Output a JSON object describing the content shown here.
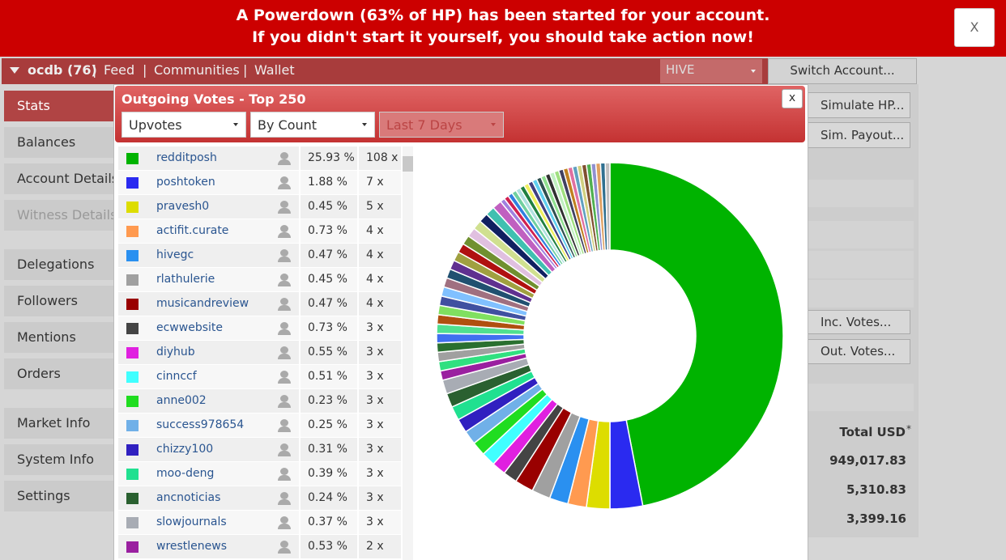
{
  "banner": {
    "line1": "A Powerdown (63% of HP) has been started for your account.",
    "line2": "If you didn't start it yourself, you should take action now!",
    "close": "X"
  },
  "navbar": {
    "account": "ocdb (76)",
    "separator": "|",
    "links": [
      "Feed",
      "Communities",
      "Wallet"
    ],
    "currency": "HIVE",
    "switch": "Switch Account..."
  },
  "sidebar": {
    "items": [
      "Stats",
      "Balances",
      "Account Details",
      "Witness Details",
      "Delegations",
      "Followers",
      "Mentions",
      "Orders",
      "Market Info",
      "System Info",
      "Settings"
    ],
    "active_index": 0,
    "disabled_index": 3
  },
  "right_panel": {
    "buttons": [
      "Simulate HP...",
      "Sim. Payout...",
      "Inc. Votes...",
      "Out. Votes..."
    ],
    "total_header": "Total USD",
    "asterisk": "*",
    "totals": [
      "949,017.83",
      "5,310.83",
      "3,399.16"
    ]
  },
  "modal": {
    "title": "Outgoing Votes - Top 250",
    "close": "x",
    "filters": [
      "Upvotes",
      "By Count",
      "Last 7 Days"
    ],
    "rows": [
      {
        "name": "redditposh",
        "color": "#00b300",
        "percent": "25.93 %",
        "count": 108,
        "count_label": "108 x"
      },
      {
        "name": "poshtoken",
        "color": "#2a2af0",
        "percent": "1.88 %",
        "count": 7,
        "count_label": "7 x"
      },
      {
        "name": "pravesh0",
        "color": "#dddd00",
        "percent": "0.45 %",
        "count": 5,
        "count_label": "5 x"
      },
      {
        "name": "actifit.curate",
        "color": "#ff9a50",
        "percent": "0.73 %",
        "count": 4,
        "count_label": "4 x"
      },
      {
        "name": "hivegc",
        "color": "#2a90f0",
        "percent": "0.47 %",
        "count": 4,
        "count_label": "4 x"
      },
      {
        "name": "rlathulerie",
        "color": "#a0a0a0",
        "percent": "0.45 %",
        "count": 4,
        "count_label": "4 x"
      },
      {
        "name": "musicandreview",
        "color": "#990000",
        "percent": "0.47 %",
        "count": 4,
        "count_label": "4 x"
      },
      {
        "name": "ecwwebsite",
        "color": "#444444",
        "percent": "0.73 %",
        "count": 3,
        "count_label": "3 x"
      },
      {
        "name": "diyhub",
        "color": "#e020e0",
        "percent": "0.55 %",
        "count": 3,
        "count_label": "3 x"
      },
      {
        "name": "cinnccf",
        "color": "#40ffff",
        "percent": "0.51 %",
        "count": 3,
        "count_label": "3 x"
      },
      {
        "name": "anne002",
        "color": "#20dd20",
        "percent": "0.23 %",
        "count": 3,
        "count_label": "3 x"
      },
      {
        "name": "success978654",
        "color": "#70b0e8",
        "percent": "0.25 %",
        "count": 3,
        "count_label": "3 x"
      },
      {
        "name": "chizzy100",
        "color": "#3020c0",
        "percent": "0.31 %",
        "count": 3,
        "count_label": "3 x"
      },
      {
        "name": "moo-deng",
        "color": "#20e090",
        "percent": "0.39 %",
        "count": 3,
        "count_label": "3 x"
      },
      {
        "name": "ancnoticias",
        "color": "#2a6030",
        "percent": "0.24 %",
        "count": 3,
        "count_label": "3 x"
      },
      {
        "name": "slowjournals",
        "color": "#a8acb4",
        "percent": "0.37 %",
        "count": 3,
        "count_label": "3 x"
      },
      {
        "name": "wrestlenews",
        "color": "#9a20a0",
        "percent": "0.53 %",
        "count": 2,
        "count_label": "2 x"
      }
    ],
    "more_slices": [
      {
        "color": "#30e080",
        "count": 2
      },
      {
        "color": "#a0a0a0",
        "count": 2
      },
      {
        "color": "#2a7030",
        "count": 2
      },
      {
        "color": "#4070f0",
        "count": 2
      },
      {
        "color": "#50e090",
        "count": 2
      },
      {
        "color": "#b05010",
        "count": 2
      },
      {
        "color": "#80e060",
        "count": 2
      },
      {
        "color": "#4050a0",
        "count": 2
      },
      {
        "color": "#80c0ff",
        "count": 2
      },
      {
        "color": "#a07080",
        "count": 2
      },
      {
        "color": "#205070",
        "count": 2
      },
      {
        "color": "#603090",
        "count": 2
      },
      {
        "color": "#a0a040",
        "count": 2
      },
      {
        "color": "#b01010",
        "count": 2
      },
      {
        "color": "#709030",
        "count": 2
      },
      {
        "color": "#e0c0e0",
        "count": 2
      },
      {
        "color": "#d0e090",
        "count": 2
      },
      {
        "color": "#102060",
        "count": 2
      },
      {
        "color": "#40c0b0",
        "count": 2
      },
      {
        "color": "#c060c0",
        "count": 2
      },
      {
        "color": "#a080e0",
        "count": 1
      },
      {
        "color": "#d02050",
        "count": 1
      },
      {
        "color": "#3080e0",
        "count": 1
      },
      {
        "color": "#70d0a0",
        "count": 1
      },
      {
        "color": "#b0e0e0",
        "count": 1
      },
      {
        "color": "#208040",
        "count": 1
      },
      {
        "color": "#f0f060",
        "count": 1
      },
      {
        "color": "#404080",
        "count": 1
      },
      {
        "color": "#60d0f0",
        "count": 1
      },
      {
        "color": "#305050",
        "count": 1
      },
      {
        "color": "#90e090",
        "count": 1
      },
      {
        "color": "#303030",
        "count": 1
      },
      {
        "color": "#c0f0c0",
        "count": 1
      },
      {
        "color": "#a0e080",
        "count": 1
      },
      {
        "color": "#404060",
        "count": 1
      },
      {
        "color": "#c08020",
        "count": 1
      },
      {
        "color": "#e070a0",
        "count": 1
      },
      {
        "color": "#60a0c0",
        "count": 1
      },
      {
        "color": "#d0d080",
        "count": 1
      },
      {
        "color": "#805030",
        "count": 1
      },
      {
        "color": "#50b050",
        "count": 1
      },
      {
        "color": "#9090d0",
        "count": 1
      },
      {
        "color": "#e0a060",
        "count": 1
      },
      {
        "color": "#307090",
        "count": 1
      },
      {
        "color": "#c0c0c0",
        "count": 1
      }
    ]
  }
}
